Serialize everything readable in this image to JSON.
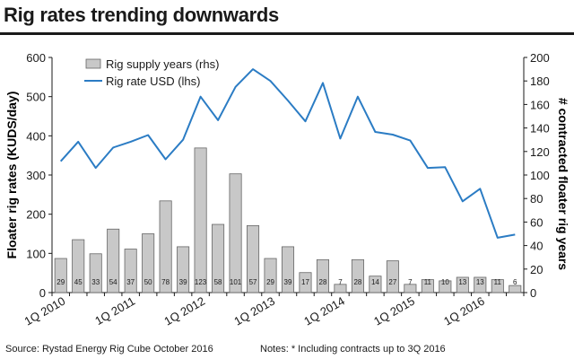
{
  "title": "Rig rates trending downwards",
  "footer": {
    "source": "Source: Rystad Energy Rig Cube October 2016",
    "notes": "Notes: * Including contracts up to 3Q 2016"
  },
  "colors": {
    "bar": "#c8c8c8",
    "bar_stroke": "#666666",
    "line": "#2b7cc4",
    "text": "#1a1a1a"
  },
  "chart_data": {
    "type": "bar+line",
    "ylabel_left": "Floater rig rates (KUDS/day)",
    "ylabel_right": "# contracted floater rig years",
    "y_left_range": [
      0,
      600
    ],
    "y_left_ticks": [
      "0",
      "100",
      "200",
      "300",
      "400",
      "500",
      "600"
    ],
    "y_right_range": [
      0,
      200
    ],
    "y_right_ticks": [
      "0",
      "20",
      "40",
      "60",
      "80",
      "100",
      "120",
      "140",
      "160",
      "180",
      "200"
    ],
    "x_tick_labels": [
      "1Q 2010",
      "1Q 2011",
      "1Q 2012",
      "1Q 2013",
      "1Q 2014",
      "1Q 2015",
      "1Q 2016"
    ],
    "categories": [
      "1Q10",
      "2Q10",
      "3Q10",
      "4Q10",
      "1Q11",
      "2Q11",
      "3Q11",
      "4Q11",
      "1Q12",
      "2Q12",
      "3Q12",
      "4Q12",
      "1Q13",
      "2Q13",
      "3Q13",
      "4Q13",
      "1Q14",
      "2Q14",
      "3Q14",
      "4Q14",
      "1Q15",
      "2Q15",
      "3Q15",
      "4Q15",
      "1Q16",
      "2Q16",
      "3Q16"
    ],
    "legend": [
      "Rig supply years (rhs)",
      "Rig rate USD (lhs)"
    ],
    "series": [
      {
        "name": "Rig supply years (rhs)",
        "type": "bar",
        "axis": "right",
        "values": [
          29,
          45,
          33,
          54,
          37,
          50,
          78,
          39,
          123,
          58,
          101,
          57,
          29,
          39,
          17,
          28,
          7,
          28,
          14,
          27,
          7,
          11,
          10,
          13,
          13,
          11,
          6
        ],
        "labels": [
          "29",
          "45",
          "33",
          "54",
          "37",
          "50",
          "78",
          "39",
          "123",
          "58",
          "101",
          "57",
          "29",
          "39",
          "17",
          "28",
          "7",
          "28",
          "14",
          "27",
          "7",
          "11",
          "10",
          "13",
          "13",
          "11",
          "6"
        ]
      },
      {
        "name": "Rig rate USD (lhs)",
        "type": "line",
        "axis": "left",
        "values": [
          335,
          385,
          318,
          370,
          385,
          402,
          340,
          390,
          500,
          440,
          525,
          570,
          540,
          490,
          437,
          535,
          393,
          500,
          410,
          403,
          388,
          318,
          320,
          233,
          265,
          140,
          148
        ]
      }
    ]
  }
}
